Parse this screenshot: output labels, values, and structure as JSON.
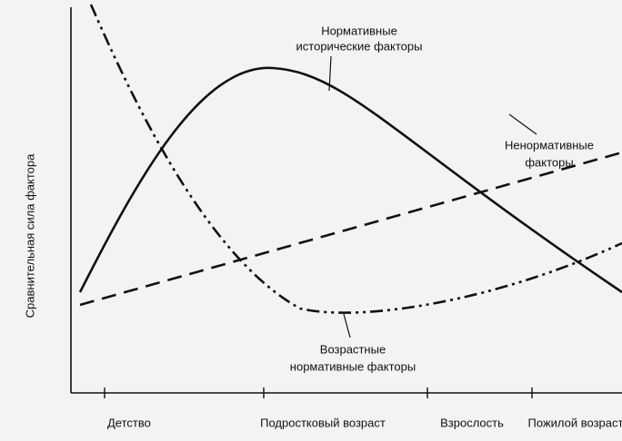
{
  "y_axis_label": "Сравнительная сила фактора",
  "x_axis_labels": [
    "Детство",
    "Подростковый возраст",
    "Взрослость",
    "Пожилой возраст"
  ],
  "curves": {
    "historical": [
      "Нормативные",
      "исторические факторы"
    ],
    "nonnormative": [
      "Ненормативные",
      "факторы"
    ],
    "age": [
      "Возрастные",
      "нормативные факторы"
    ]
  }
}
